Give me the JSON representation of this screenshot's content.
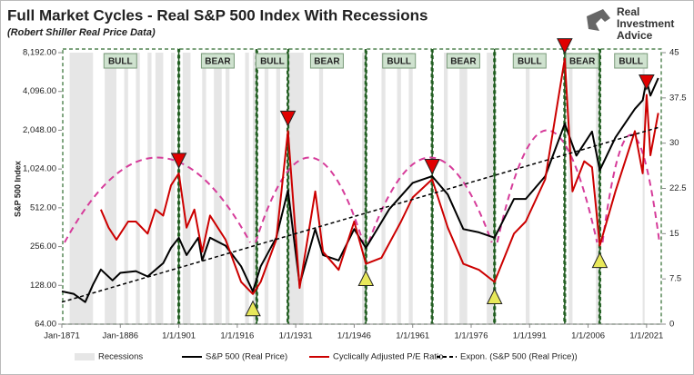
{
  "chart_data": {
    "type": "line",
    "title": "Full Market Cycles - Real S&P 500 Index With Recessions",
    "subtitle": "(Robert Shiller Real Price Data)",
    "y_label": "S&P 500 Index",
    "log_y": true,
    "xlim": [
      1871,
      2025
    ],
    "xticks": [
      {
        "value": 1871,
        "label": "Jan-1871"
      },
      {
        "value": 1886,
        "label": "Jan-1886"
      },
      {
        "value": 1901,
        "label": "1/1/1901"
      },
      {
        "value": 1916,
        "label": "1/1/1916"
      },
      {
        "value": 1931,
        "label": "1/1/1931"
      },
      {
        "value": 1946,
        "label": "1/1/1946"
      },
      {
        "value": 1961,
        "label": "1/1/1961"
      },
      {
        "value": 1976,
        "label": "1/1/1976"
      },
      {
        "value": 1991,
        "label": "1/1/1991"
      },
      {
        "value": 2006,
        "label": "1/1/2006"
      },
      {
        "value": 2021,
        "label": "1/1/2021"
      }
    ],
    "ylim": [
      64,
      8192
    ],
    "yticks": [
      {
        "value": 64,
        "label": "64.00"
      },
      {
        "value": 128,
        "label": "128.00"
      },
      {
        "value": 256,
        "label": "256.00"
      },
      {
        "value": 512,
        "label": "512.00"
      },
      {
        "value": 1024,
        "label": "1,024.00"
      },
      {
        "value": 2048,
        "label": "2,048.00"
      },
      {
        "value": 4096,
        "label": "4,096.00"
      },
      {
        "value": 8192,
        "label": "8,192.00"
      }
    ],
    "y2lim": [
      0,
      45
    ],
    "y2ticks": [
      0,
      7.5,
      15,
      22.5,
      30,
      37.5,
      45
    ],
    "recessions": {
      "name": "Recessions",
      "color": "#e6e6e6",
      "spans": [
        [
          1873,
          1879
        ],
        [
          1882,
          1885
        ],
        [
          1887,
          1888
        ],
        [
          1890,
          1891
        ],
        [
          1893,
          1894
        ],
        [
          1895,
          1897
        ],
        [
          1899,
          1900
        ],
        [
          1902,
          1904
        ],
        [
          1907,
          1908
        ],
        [
          1910,
          1912
        ],
        [
          1913,
          1914
        ],
        [
          1918,
          1919
        ],
        [
          1920,
          1921
        ],
        [
          1923,
          1924
        ],
        [
          1926,
          1927
        ],
        [
          1929,
          1933
        ],
        [
          1937,
          1938
        ],
        [
          1948,
          1949
        ],
        [
          1953,
          1954
        ],
        [
          1957,
          1958
        ],
        [
          1960,
          1961
        ],
        [
          1969,
          1970
        ],
        [
          1973,
          1975
        ],
        [
          1980,
          1982
        ],
        [
          1990,
          1991
        ],
        [
          2001,
          2002
        ],
        [
          2008,
          2009
        ],
        [
          2020,
          2020.5
        ]
      ]
    },
    "cycles": [
      {
        "label": "BULL",
        "start": 1871,
        "end": 1901
      },
      {
        "label": "BEAR",
        "start": 1901,
        "end": 1921
      },
      {
        "label": "BULL",
        "start": 1921,
        "end": 1929
      },
      {
        "label": "BEAR",
        "start": 1929,
        "end": 1949
      },
      {
        "label": "BULL",
        "start": 1949,
        "end": 1966
      },
      {
        "label": "BEAR",
        "start": 1966,
        "end": 1982
      },
      {
        "label": "BULL",
        "start": 1982,
        "end": 2000
      },
      {
        "label": "BEAR",
        "start": 2000,
        "end": 2009
      },
      {
        "label": "BULL",
        "start": 2009,
        "end": 2025
      }
    ],
    "peaks": {
      "color": "#e00000",
      "x": [
        1901,
        1929,
        1966,
        2000,
        2021
      ],
      "values": [
        25,
        32,
        24,
        44,
        38
      ]
    },
    "troughs": {
      "color": "#e8e85a",
      "x": [
        1920,
        1949,
        1982,
        2009
      ],
      "values": [
        5,
        10,
        7,
        13
      ]
    },
    "series": [
      {
        "name": "S&P 500 (Real Price)",
        "color": "#000000",
        "x": [
          1871,
          1874,
          1877,
          1879,
          1881,
          1884,
          1886,
          1890,
          1893,
          1897,
          1899,
          1901,
          1903,
          1906,
          1907,
          1909,
          1913,
          1917,
          1920,
          1922,
          1926,
          1929,
          1932,
          1936,
          1938,
          1942,
          1946,
          1949,
          1955,
          1961,
          1966,
          1970,
          1974,
          1978,
          1982,
          1987,
          1990,
          1995,
          2000,
          2003,
          2007,
          2009,
          2013,
          2018,
          2020,
          2021,
          2022,
          2024
        ],
        "values": [
          115,
          110,
          95,
          130,
          170,
          140,
          160,
          165,
          150,
          190,
          250,
          300,
          220,
          300,
          200,
          300,
          260,
          180,
          115,
          180,
          300,
          700,
          130,
          350,
          220,
          200,
          350,
          250,
          500,
          800,
          900,
          650,
          350,
          330,
          300,
          600,
          600,
          900,
          2300,
          1300,
          2000,
          1000,
          1800,
          3000,
          3500,
          5000,
          3800,
          5200
        ]
      },
      {
        "name": "Cyclically Adjusted P/E Ratio",
        "color": "#cc0000",
        "axis": "y2",
        "x": [
          1881,
          1883,
          1885,
          1888,
          1890,
          1893,
          1895,
          1897,
          1899,
          1901,
          1903,
          1905,
          1907,
          1909,
          1913,
          1917,
          1920,
          1922,
          1926,
          1929,
          1932,
          1936,
          1938,
          1942,
          1946,
          1949,
          1953,
          1958,
          1961,
          1966,
          1970,
          1974,
          1978,
          1982,
          1987,
          1990,
          1995,
          2000,
          2002,
          2005,
          2007,
          2009,
          2013,
          2018,
          2020,
          2021,
          2022,
          2024
        ],
        "values": [
          19,
          16,
          14,
          17,
          17,
          15,
          19,
          18,
          23,
          25,
          16,
          19,
          12,
          18,
          14,
          7,
          5,
          7,
          14,
          32,
          6,
          22,
          12,
          9,
          17,
          10,
          11,
          17,
          21,
          24,
          16,
          10,
          9,
          7,
          15,
          17,
          24,
          44,
          22,
          27,
          26,
          13,
          22,
          32,
          25,
          38,
          28,
          35
        ]
      },
      {
        "name": "Expon. (S&P 500 (Real Price))",
        "color": "#000000",
        "dashed": true,
        "x": [
          1871,
          2024
        ],
        "values": [
          95,
          2150
        ]
      }
    ]
  },
  "logo": {
    "lines": [
      "Real",
      "Investment",
      "Advice"
    ]
  }
}
